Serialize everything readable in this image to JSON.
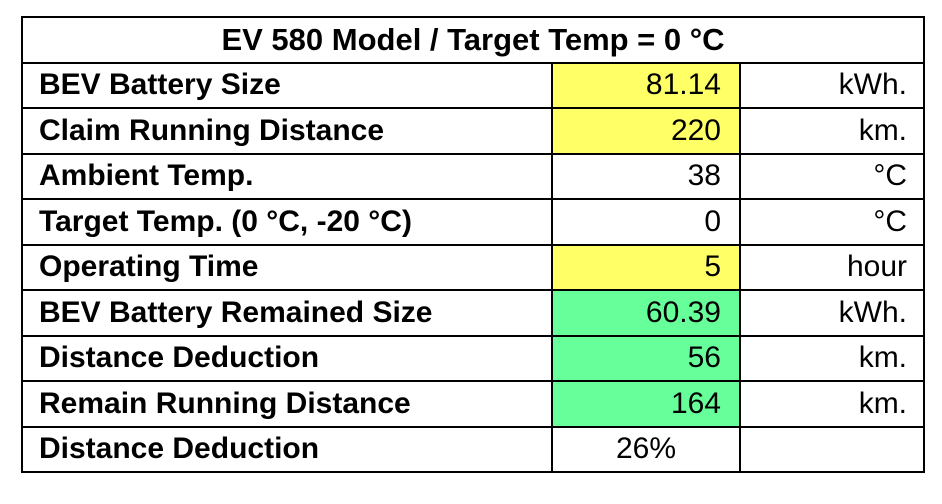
{
  "title": "EV 580 Model / Target Temp = 0 °C",
  "colors": {
    "input_fill": "#ffff66",
    "output_fill": "#66ff99",
    "border": "#000000"
  },
  "rows": [
    {
      "label": "BEV Battery Size",
      "value": "81.14",
      "unit": "kWh.",
      "fill": "input"
    },
    {
      "label": "Claim Running Distance",
      "value": "220",
      "unit": "km.",
      "fill": "input"
    },
    {
      "label": "Ambient Temp.",
      "value": "38",
      "unit": "°C",
      "fill": "none"
    },
    {
      "label": "Target Temp. (0 °C, -20 °C)",
      "value": "0",
      "unit": "°C",
      "fill": "none"
    },
    {
      "label": "Operating Time",
      "value": "5",
      "unit": "hour",
      "fill": "input"
    },
    {
      "label": "BEV Battery Remained Size",
      "value": "60.39",
      "unit": "kWh.",
      "fill": "output"
    },
    {
      "label": "Distance Deduction",
      "value": "56",
      "unit": "km.",
      "fill": "output"
    },
    {
      "label": "Remain Running Distance",
      "value": "164",
      "unit": "km.",
      "fill": "output"
    },
    {
      "label": "Distance Deduction",
      "value": "26%",
      "unit": "",
      "fill": "none"
    }
  ]
}
